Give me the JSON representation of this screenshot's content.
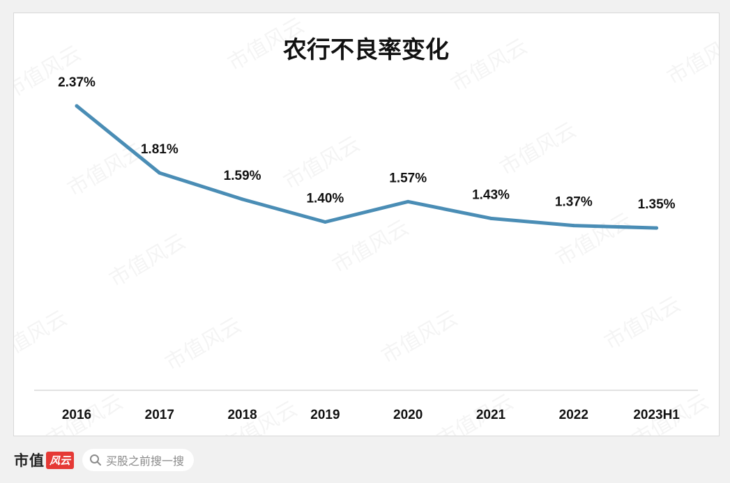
{
  "chart_data": {
    "type": "line",
    "title": "农行不良率变化",
    "categories": [
      "2016",
      "2017",
      "2018",
      "2019",
      "2020",
      "2021",
      "2022",
      "2023H1"
    ],
    "series": [
      {
        "values": [
          2.37,
          1.81,
          1.59,
          1.4,
          1.57,
          1.43,
          1.37,
          1.35
        ],
        "labels": [
          "2.37%",
          "1.81%",
          "1.59%",
          "1.40%",
          "1.57%",
          "1.43%",
          "1.37%",
          "1.35%"
        ],
        "color": "#4a8db5"
      }
    ],
    "xlabel": "",
    "ylabel": "",
    "ylim": [
      0,
      2.6
    ],
    "grid": false,
    "legend": "none"
  },
  "watermark_text": "市值风云",
  "footer": {
    "brand_name": "市值",
    "brand_badge": "风云",
    "search_placeholder": "买股之前搜一搜",
    "search_icon": "search-icon"
  }
}
